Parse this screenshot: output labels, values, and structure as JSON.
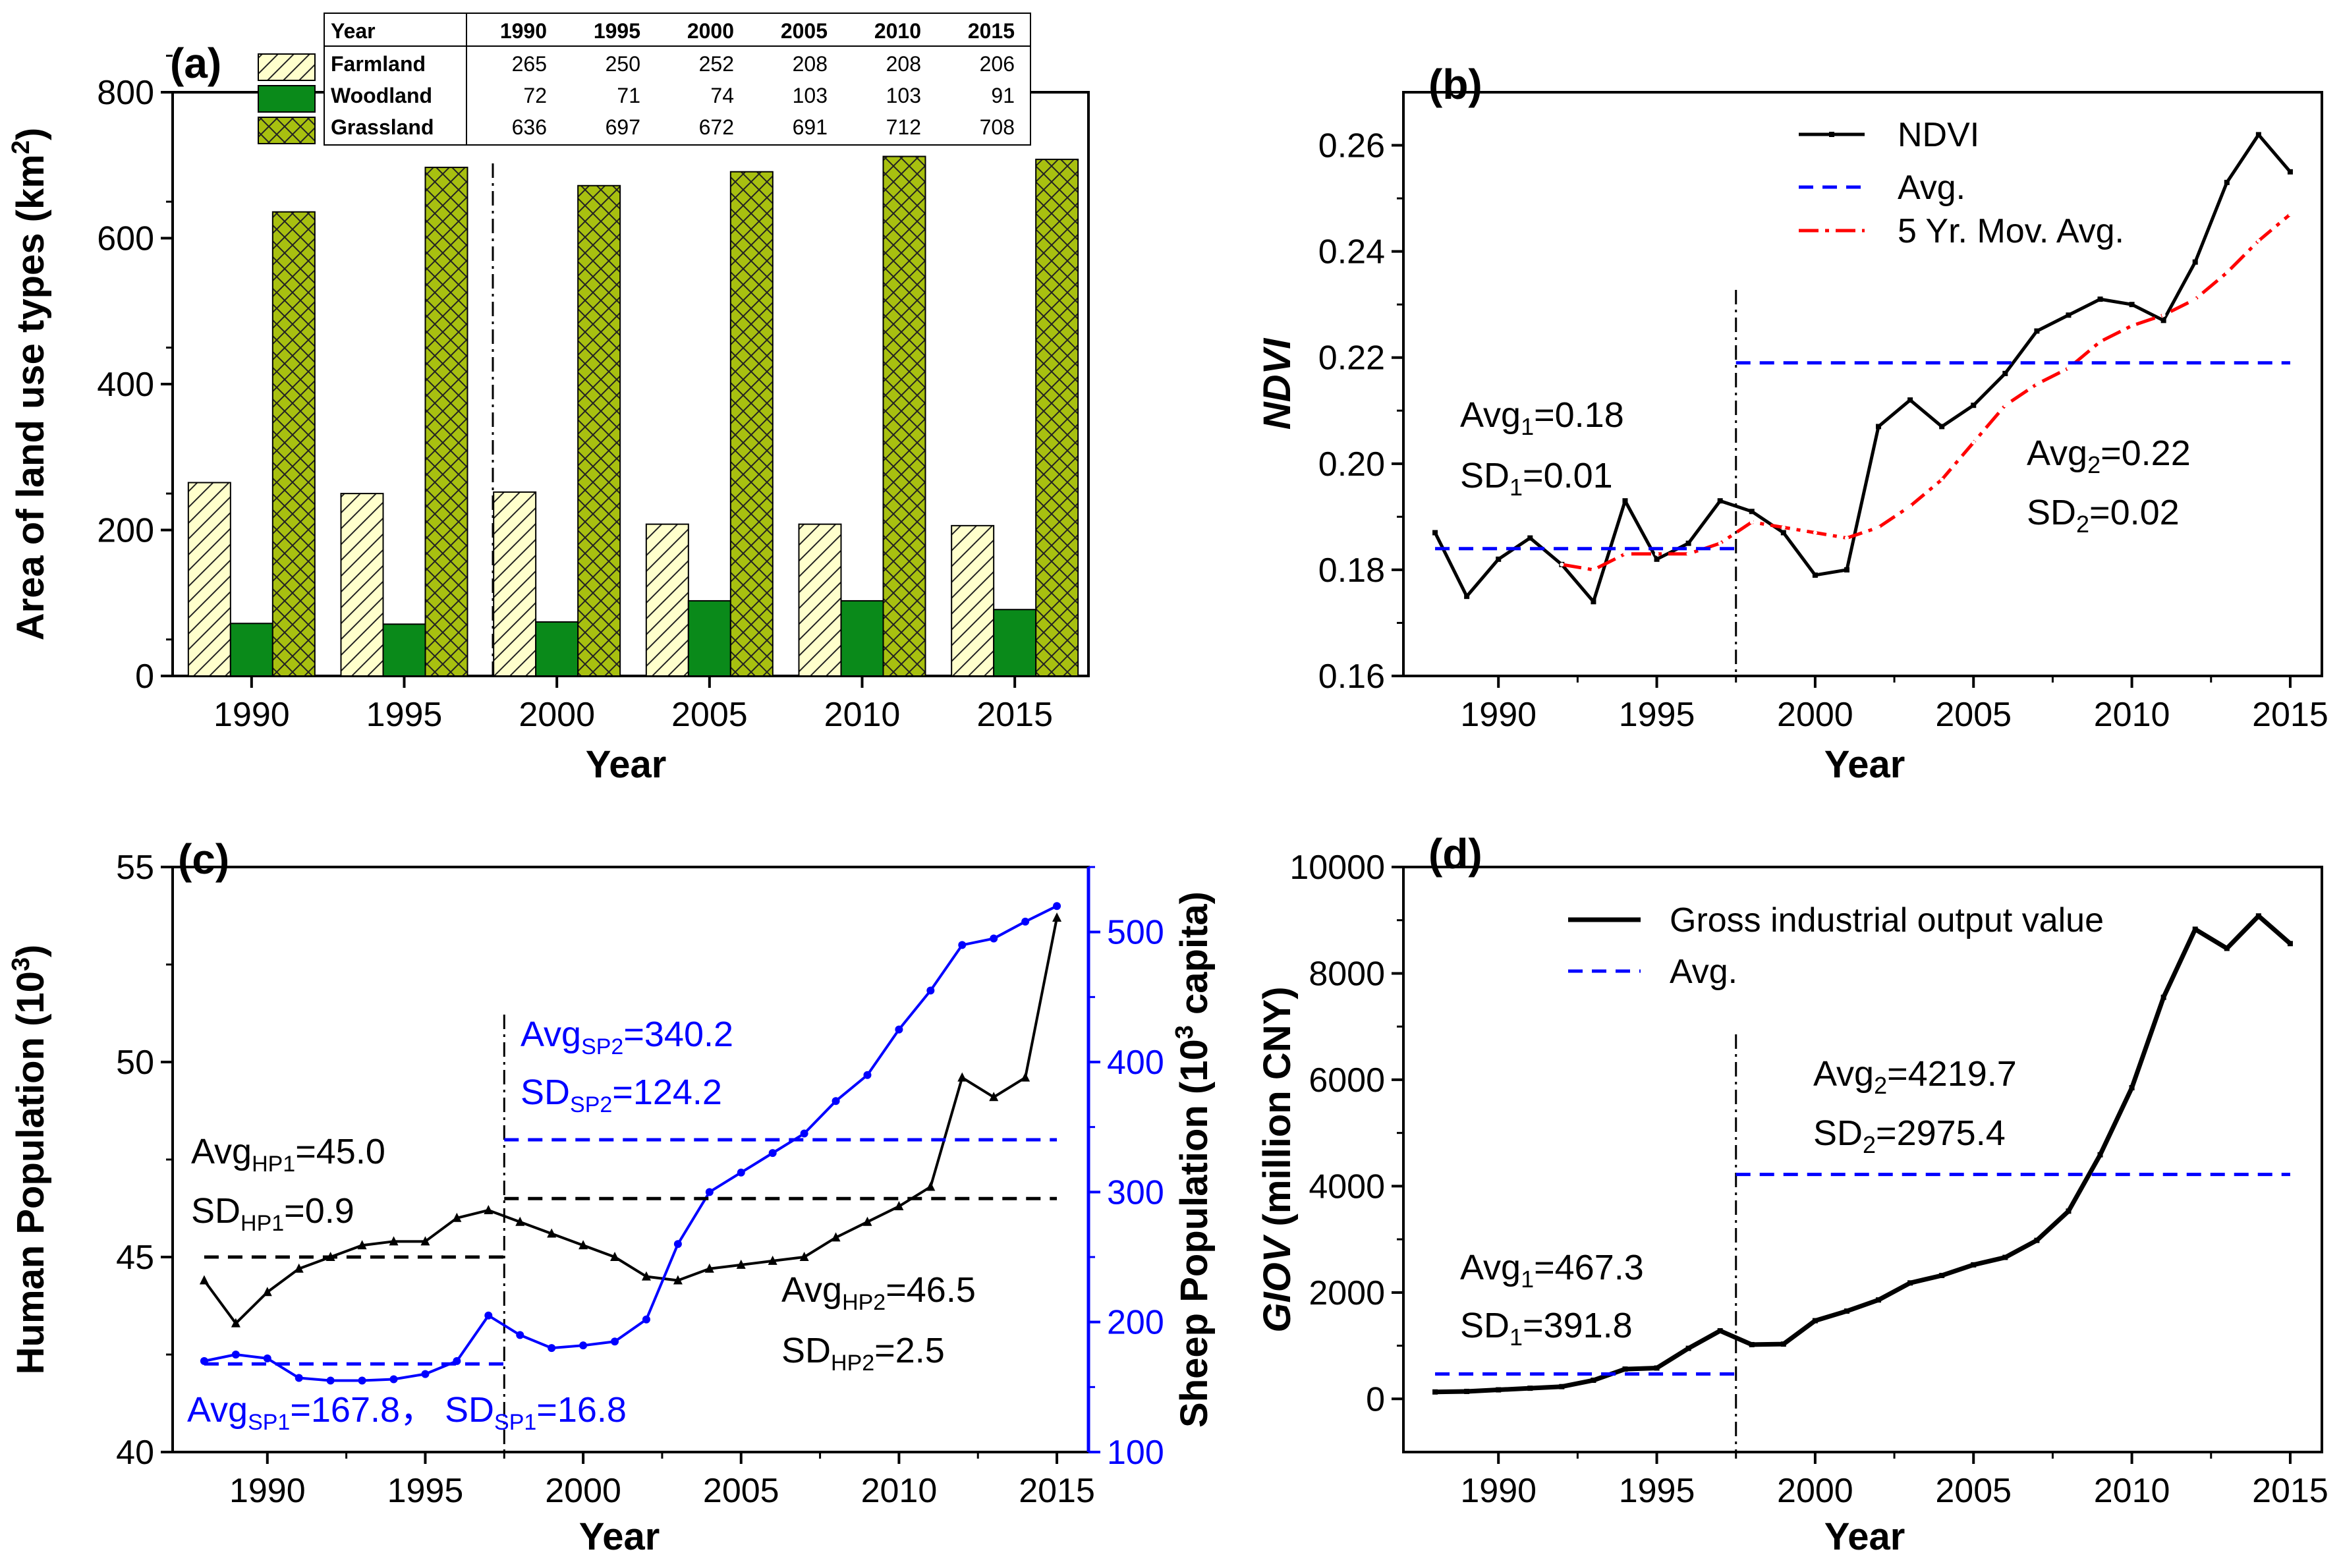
{
  "chart_data": [
    {
      "id": "a",
      "type": "bar",
      "panel_label": "(a)",
      "xlabel": "Year",
      "ylabel": "Area of land use types (km²)",
      "ylabel_main": "Area of land use types (km",
      "ylabel_sup": "2",
      "ylabel_end": ")",
      "ylim": [
        0,
        800
      ],
      "yticks": [
        0,
        200,
        400,
        600,
        800
      ],
      "categories": [
        "1990",
        "1995",
        "2000",
        "2005",
        "2010",
        "2015"
      ],
      "series": [
        {
          "name": "Farmland",
          "values": [
            265,
            250,
            252,
            208,
            208,
            206
          ],
          "color": "#ffffcc",
          "hatch": "diag"
        },
        {
          "name": "Woodland",
          "values": [
            72,
            71,
            74,
            103,
            103,
            91
          ],
          "color": "#0a8a1a",
          "hatch": "none"
        },
        {
          "name": "Grassland",
          "values": [
            636,
            697,
            672,
            691,
            712,
            708
          ],
          "color": "#a8c010",
          "hatch": "cross"
        }
      ],
      "table_header": [
        "Year",
        "1990",
        "1995",
        "2000",
        "2005",
        "2010",
        "2015"
      ],
      "divider_between": [
        "1995",
        "2000"
      ]
    },
    {
      "id": "b",
      "type": "line",
      "panel_label": "(b)",
      "xlabel": "Year",
      "ylabel": "NDVI",
      "xlim": [
        1987,
        2016
      ],
      "ylim": [
        0.16,
        0.27
      ],
      "xticks": [
        1990,
        1995,
        2000,
        2005,
        2010,
        2015
      ],
      "yticks": [
        0.16,
        0.18,
        0.2,
        0.22,
        0.24,
        0.26
      ],
      "ytick_labels": [
        "0.16",
        "0.18",
        "0.20",
        "0.22",
        "0.24",
        "0.26"
      ],
      "x": [
        1988,
        1989,
        1990,
        1991,
        1992,
        1993,
        1994,
        1995,
        1996,
        1997,
        1998,
        1999,
        2000,
        2001,
        2002,
        2003,
        2004,
        2005,
        2006,
        2007,
        2008,
        2009,
        2010,
        2011,
        2012,
        2013,
        2014,
        2015
      ],
      "series": [
        {
          "name": "NDVI",
          "color": "#000000",
          "style": "solid",
          "values": [
            0.187,
            0.175,
            0.182,
            0.186,
            0.181,
            0.174,
            0.193,
            0.182,
            0.185,
            0.193,
            0.191,
            0.187,
            0.179,
            0.18,
            0.207,
            0.212,
            0.207,
            0.211,
            0.217,
            0.225,
            0.228,
            0.231,
            0.23,
            0.227,
            0.238,
            0.253,
            0.262,
            0.255
          ]
        },
        {
          "name": "5 Yr. Mov. Avg.",
          "color": "#ff0000",
          "style": "dashdot",
          "x": [
            1992,
            1993,
            1994,
            1995,
            1996,
            1997,
            1998,
            1999,
            2000,
            2001,
            2002,
            2003,
            2004,
            2005,
            2006,
            2007,
            2008,
            2009,
            2010,
            2011,
            2012,
            2013,
            2014,
            2015
          ],
          "values": [
            0.181,
            0.18,
            0.183,
            0.183,
            0.183,
            0.185,
            0.189,
            0.188,
            0.187,
            0.186,
            0.188,
            0.192,
            0.197,
            0.204,
            0.211,
            0.215,
            0.218,
            0.223,
            0.226,
            0.228,
            0.231,
            0.236,
            0.242,
            0.247
          ]
        },
        {
          "name": "Avg.",
          "color": "#0000ff",
          "style": "dash",
          "segments": [
            {
              "x": [
                1988,
                1997.5
              ],
              "y": 0.184
            },
            {
              "x": [
                1997.5,
                2015
              ],
              "y": 0.219
            }
          ]
        }
      ],
      "divider_x": 1997.5,
      "annotations": [
        {
          "main": "Avg",
          "sub": "1",
          "rest": "=0.18",
          "color": "#000000"
        },
        {
          "main": "SD",
          "sub": "1",
          "rest": "=0.01",
          "color": "#000000"
        },
        {
          "main": "Avg",
          "sub": "2",
          "rest": "=0.22",
          "color": "#000000"
        },
        {
          "main": "SD",
          "sub": "2",
          "rest": "=0.02",
          "color": "#000000"
        }
      ]
    },
    {
      "id": "c",
      "type": "line",
      "panel_label": "(c)",
      "xlabel": "Year",
      "ylabel": "Human Population (10³)",
      "ylabel_main": "Human Population (10",
      "ylabel_sup": "3",
      "ylabel_end": ")",
      "ylabel_right": "Sheep Population (10³ capita)",
      "ylabel_right_main": "Sheep Population (10",
      "ylabel_right_sup": "3",
      "ylabel_right_end": " capita)",
      "xlim": [
        1987,
        2016
      ],
      "ylim": [
        40,
        55
      ],
      "ylim_right": [
        100,
        550
      ],
      "xticks": [
        1990,
        1995,
        2000,
        2005,
        2010,
        2015
      ],
      "yticks": [
        40,
        45,
        50,
        55
      ],
      "yticks_right": [
        100,
        200,
        300,
        400,
        500
      ],
      "x": [
        1988,
        1989,
        1990,
        1991,
        1992,
        1993,
        1994,
        1995,
        1996,
        1997,
        1998,
        1999,
        2000,
        2001,
        2002,
        2003,
        2004,
        2005,
        2006,
        2007,
        2008,
        2009,
        2010,
        2011,
        2012,
        2013,
        2014,
        2015
      ],
      "series": [
        {
          "name": "Human Population",
          "axis": "left",
          "color": "#000000",
          "values": [
            44.4,
            43.3,
            44.1,
            44.7,
            45.0,
            45.3,
            45.4,
            45.4,
            46.0,
            46.2,
            45.9,
            45.6,
            45.3,
            45.0,
            44.5,
            44.4,
            44.7,
            44.8,
            44.9,
            45.0,
            45.5,
            45.9,
            46.3,
            46.8,
            49.6,
            49.1,
            49.6,
            53.7
          ]
        },
        {
          "name": "Sheep Population",
          "axis": "right",
          "color": "#0000ff",
          "values": [
            170,
            175,
            172,
            157,
            155,
            155,
            156,
            160,
            170,
            205,
            190,
            180,
            182,
            185,
            202,
            260,
            300,
            315,
            330,
            345,
            370,
            390,
            425,
            455,
            490,
            495,
            508,
            520
          ]
        },
        {
          "name": "AvgHP1",
          "axis": "left",
          "color": "#000000",
          "style": "dash",
          "segments": [
            {
              "x": [
                1988,
                1997.5
              ],
              "y": 45.0
            }
          ]
        },
        {
          "name": "AvgHP2",
          "axis": "left",
          "color": "#000000",
          "style": "dash",
          "segments": [
            {
              "x": [
                1997.5,
                2015
              ],
              "y": 46.5
            }
          ]
        },
        {
          "name": "AvgSP1",
          "axis": "right",
          "color": "#0000ff",
          "style": "dash",
          "segments": [
            {
              "x": [
                1988,
                1997.5
              ],
              "y": 167.8
            }
          ]
        },
        {
          "name": "AvgSP2",
          "axis": "right",
          "color": "#0000ff",
          "style": "dash",
          "segments": [
            {
              "x": [
                1997.5,
                2015
              ],
              "y": 340.2
            }
          ]
        }
      ],
      "divider_x": 1997.5,
      "annotations": [
        {
          "main": "Avg",
          "sub": "SP2",
          "rest": "=340.2",
          "color": "#0000ff"
        },
        {
          "main": "SD",
          "sub": "SP2",
          "rest": "=124.2",
          "color": "#0000ff"
        },
        {
          "main": "Avg",
          "sub": "HP1",
          "rest": "=45.0",
          "color": "#000000"
        },
        {
          "main": "SD",
          "sub": "HP1",
          "rest": "=0.9",
          "color": "#000000"
        },
        {
          "main": "Avg",
          "sub": "HP2",
          "rest": "=46.5",
          "color": "#000000"
        },
        {
          "main": "SD",
          "sub": "HP2",
          "rest": "=2.5",
          "color": "#000000"
        },
        {
          "main": "Avg",
          "sub": "SP1",
          "rest": "=167.8，",
          "color": "#0000ff"
        },
        {
          "main": "SD",
          "sub": "SP1",
          "rest": "=16.8",
          "color": "#0000ff"
        }
      ]
    },
    {
      "id": "d",
      "type": "line",
      "panel_label": "(d)",
      "xlabel": "Year",
      "ylabel": "GIOV (million CNY)",
      "ylabel_italic": "GIOV",
      "ylabel_rest": " (million CNY)",
      "xlim": [
        1987,
        2016
      ],
      "ylim": [
        -1000,
        10000
      ],
      "xticks": [
        1990,
        1995,
        2000,
        2005,
        2010,
        2015
      ],
      "yticks": [
        0,
        2000,
        4000,
        6000,
        8000,
        10000
      ],
      "x": [
        1988,
        1989,
        1990,
        1991,
        1992,
        1993,
        1994,
        1995,
        1996,
        1997,
        1998,
        1999,
        2000,
        2001,
        2002,
        2003,
        2004,
        2005,
        2006,
        2007,
        2008,
        2009,
        2010,
        2011,
        2012,
        2013,
        2014,
        2015
      ],
      "series": [
        {
          "name": "Gross industrial output value",
          "color": "#000000",
          "values": [
            130,
            140,
            170,
            200,
            230,
            350,
            560,
            580,
            950,
            1280,
            1020,
            1030,
            1470,
            1650,
            1860,
            2180,
            2320,
            2520,
            2660,
            2980,
            3530,
            4590,
            5850,
            7550,
            8830,
            8470,
            9080,
            8560
          ]
        },
        {
          "name": "Avg.",
          "color": "#0000ff",
          "style": "dash",
          "segments": [
            {
              "x": [
                1988,
                1997.5
              ],
              "y": 467.3
            },
            {
              "x": [
                1997.5,
                2015
              ],
              "y": 4219.7
            }
          ]
        }
      ],
      "divider_x": 1997.5,
      "annotations": [
        {
          "main": "Avg",
          "sub": "2",
          "rest": "=4219.7",
          "color": "#000000"
        },
        {
          "main": "SD",
          "sub": "2",
          "rest": "=2975.4",
          "color": "#000000"
        },
        {
          "main": "Avg",
          "sub": "1",
          "rest": "=467.3",
          "color": "#000000"
        },
        {
          "main": "SD",
          "sub": "1",
          "rest": "=391.8",
          "color": "#000000"
        }
      ]
    }
  ]
}
